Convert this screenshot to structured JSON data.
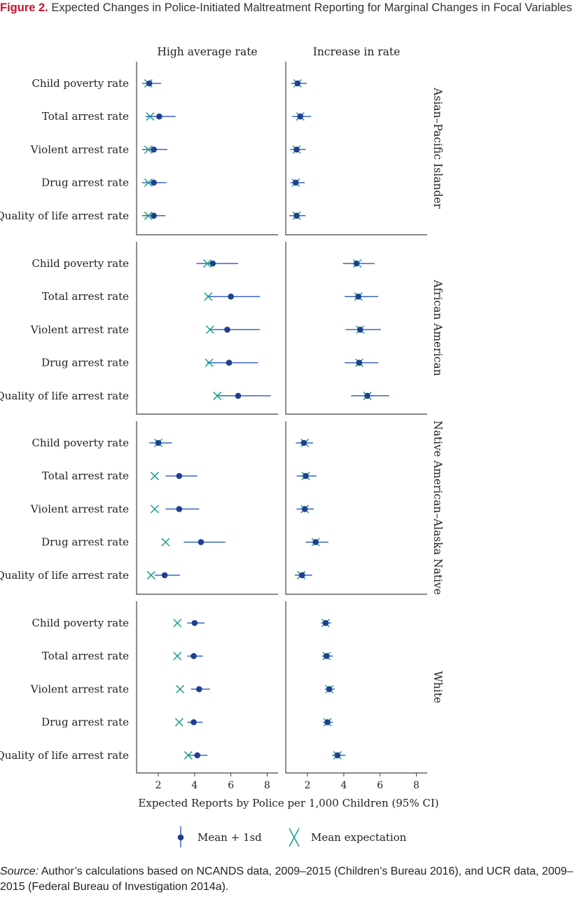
{
  "figure": {
    "label": "Figure 2.",
    "title": "Expected Changes in Police-Initiated Maltreatment Reporting for Marginal Changes in Focal Variables"
  },
  "source": {
    "label": "Source:",
    "text": "Author’s calculations based on NCANDS data, 2009–2015 (Children’s Bureau 2016), and UCR data, 2009–2015 (Federal Bureau of Investigation 2014a)."
  },
  "colors": {
    "mean_sd": "#1f3f8f",
    "ci_line": "#3a63c4",
    "expectation": "#1a9e8a",
    "frame": "#444444"
  },
  "chart_data": {
    "type": "scatter",
    "xlabel": "Expected Reports by Police per 1,000 Children (95% CI)",
    "xlim": [
      0.8,
      8.6
    ],
    "xticks": [
      2,
      4,
      6,
      8
    ],
    "columns": [
      "High average rate",
      "Increase in rate"
    ],
    "rows": [
      "Asian–Pacific Islander",
      "African American",
      "Native American–Alaska Native",
      "White"
    ],
    "variables": [
      "Child poverty rate",
      "Total arrest rate",
      "Violent arrest rate",
      "Drug arrest rate",
      "Quality of life arrest rate"
    ],
    "legend": {
      "position": "bottom",
      "items": [
        {
          "key": "mean",
          "label": "Mean + 1sd"
        },
        {
          "key": "expectation",
          "label": "Mean expectation"
        }
      ]
    },
    "panels": [
      {
        "row": "Asian–Pacific Islander",
        "column": "High average rate",
        "mean": [
          1.5,
          2.05,
          1.75,
          1.75,
          1.75
        ],
        "low": [
          1.1,
          1.3,
          1.1,
          1.1,
          1.1
        ],
        "high": [
          2.15,
          2.95,
          2.5,
          2.45,
          2.4
        ],
        "expectation": [
          1.45,
          1.55,
          1.45,
          1.45,
          1.45
        ]
      },
      {
        "row": "Asian–Pacific Islander",
        "column": "Increase in rate",
        "mean": [
          1.45,
          1.6,
          1.4,
          1.35,
          1.4
        ],
        "low": [
          1.1,
          1.15,
          1.05,
          1.05,
          1.0
        ],
        "high": [
          1.95,
          2.2,
          1.9,
          1.85,
          1.9
        ],
        "expectation": [
          1.45,
          1.6,
          1.4,
          1.35,
          1.4
        ]
      },
      {
        "row": "African American",
        "column": "High average rate",
        "mean": [
          5.0,
          6.0,
          5.8,
          5.9,
          6.4
        ],
        "low": [
          4.1,
          4.8,
          4.8,
          4.7,
          5.2
        ],
        "high": [
          6.4,
          7.6,
          7.6,
          7.5,
          8.2
        ],
        "expectation": [
          4.7,
          4.75,
          4.85,
          4.8,
          5.25
        ]
      },
      {
        "row": "African American",
        "column": "Increase in rate",
        "mean": [
          4.7,
          4.8,
          4.9,
          4.85,
          5.3
        ],
        "low": [
          3.95,
          4.05,
          4.1,
          4.05,
          4.4
        ],
        "high": [
          5.7,
          5.9,
          6.05,
          5.9,
          6.5
        ],
        "expectation": [
          4.75,
          4.8,
          4.9,
          4.85,
          5.3
        ]
      },
      {
        "row": "Native American–Alaska Native",
        "column": "High average rate",
        "mean": [
          2.0,
          3.15,
          3.15,
          4.35,
          2.35
        ],
        "low": [
          1.5,
          2.4,
          2.4,
          3.4,
          1.8
        ],
        "high": [
          2.75,
          4.15,
          4.25,
          5.7,
          3.2
        ],
        "expectation": [
          2.0,
          1.8,
          1.8,
          2.4,
          1.6
        ]
      },
      {
        "row": "Native American–Alaska Native",
        "column": "Increase in rate",
        "mean": [
          1.8,
          1.9,
          1.85,
          2.45,
          1.7
        ],
        "low": [
          1.35,
          1.4,
          1.4,
          1.9,
          1.3
        ],
        "high": [
          2.3,
          2.5,
          2.35,
          3.15,
          2.25
        ],
        "expectation": [
          1.85,
          1.9,
          1.85,
          2.45,
          1.65
        ]
      },
      {
        "row": "White",
        "column": "High average rate",
        "mean": [
          4.0,
          3.95,
          4.25,
          3.95,
          4.15
        ],
        "low": [
          3.6,
          3.6,
          3.8,
          3.6,
          3.7
        ],
        "high": [
          4.55,
          4.45,
          4.85,
          4.45,
          4.7
        ],
        "expectation": [
          3.05,
          3.05,
          3.2,
          3.15,
          3.65
        ]
      },
      {
        "row": "White",
        "column": "Increase in rate",
        "mean": [
          3.0,
          3.05,
          3.2,
          3.1,
          3.65
        ],
        "low": [
          2.75,
          2.8,
          2.95,
          2.85,
          3.35
        ],
        "high": [
          3.3,
          3.4,
          3.5,
          3.4,
          4.1
        ],
        "expectation": [
          3.0,
          3.05,
          3.2,
          3.1,
          3.65
        ]
      }
    ]
  }
}
